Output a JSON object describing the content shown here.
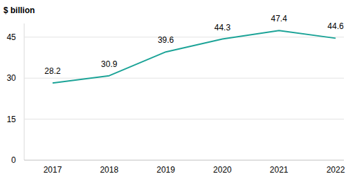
{
  "chart_data": {
    "type": "line",
    "y_label": "$ billion",
    "categories": [
      "2017",
      "2018",
      "2019",
      "2020",
      "2021",
      "2022"
    ],
    "values": [
      28.2,
      30.9,
      39.6,
      44.3,
      47.4,
      44.6
    ],
    "color": "#1ba397",
    "ylim": [
      0,
      50
    ],
    "yticks": [
      0,
      15,
      30,
      45
    ],
    "grid": true,
    "data_labels": true
  }
}
